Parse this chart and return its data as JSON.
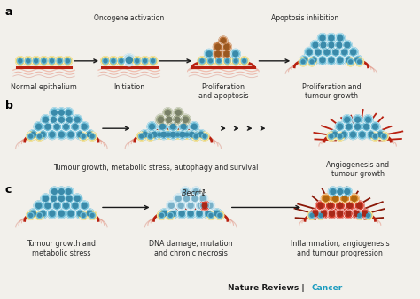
{
  "bg_color": "#f2f0eb",
  "panel_labels": [
    "a",
    "b",
    "c"
  ],
  "panel_label_fontsize": 9,
  "row_a_labels": [
    "Normal epithelium",
    "Initiation",
    "Proliferation\nand apoptosis",
    "Proliferation and\ntumour growth"
  ],
  "row_a_top_labels": [
    "",
    "Oncogene activation",
    "",
    "Apoptosis inhibition"
  ],
  "row_b_label_left": "Tumour growth, metabolic stress, autophagy and survival",
  "row_b_label_right": "Angiogenesis and\ntumour growth",
  "row_c_labels": [
    "Tumour growth and\nmetabolic stress",
    "DNA damage, mutation\nand chronic necrosis",
    "Inflammation, angiogenesis\nand tumour progression"
  ],
  "row_c_top_label": "Becn 1",
  "row_c_top_label2": "+/-",
  "nature_reviews": "Nature Reviews",
  "cancer": "Cancer",
  "nature_color": "#1a1a1a",
  "cancer_color": "#1a9bbf",
  "cell_blue": "#72bfd8",
  "cell_blue_inner": "#3a8aaa",
  "cell_blue_light": "#b8dcea",
  "cell_blue_light_inner": "#78b0c8",
  "cell_yellow": "#e8d060",
  "cell_yellow_inner": "#c8a820",
  "cell_green": "#80c060",
  "cell_brown": "#c07840",
  "cell_brown_inner": "#9a5820",
  "cell_red": "#d84030",
  "cell_red_inner": "#a82818",
  "cell_orange": "#e09030",
  "cell_orange_inner": "#b06810",
  "cell_grey": "#a8b090",
  "cell_grey_inner": "#788068",
  "vessel_red": "#b82010",
  "vessel_dark": "#8a1808",
  "tissue_pink1": "#f0b8a8",
  "tissue_pink2": "#e8a090",
  "tissue_pink3": "#d88878",
  "arrow_color": "#1a1a1a",
  "label_fontsize": 5.8,
  "text_color": "#2a2a2a"
}
